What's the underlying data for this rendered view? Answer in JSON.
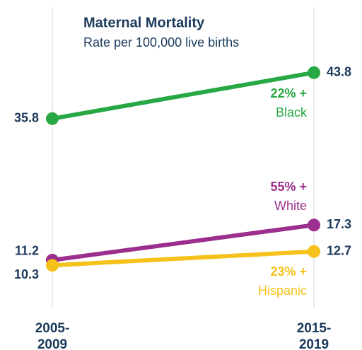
{
  "chart_data": {
    "type": "slope",
    "title": "Maternal Mortality",
    "subtitle": "Rate per 100,000 live births",
    "categories": [
      "2005-\n2009",
      "2015-\n2019"
    ],
    "series": [
      {
        "name": "Black",
        "change": "22% +",
        "color": "#27a844",
        "values": [
          35.8,
          43.8
        ]
      },
      {
        "name": "White",
        "change": "55% +",
        "color": "#9c2f8e",
        "values": [
          11.2,
          17.3
        ]
      },
      {
        "name": "Hispanic",
        "change": "23% +",
        "color": "#f5c21b",
        "values": [
          10.3,
          12.7
        ]
      }
    ],
    "ylim": [
      0,
      52
    ]
  }
}
